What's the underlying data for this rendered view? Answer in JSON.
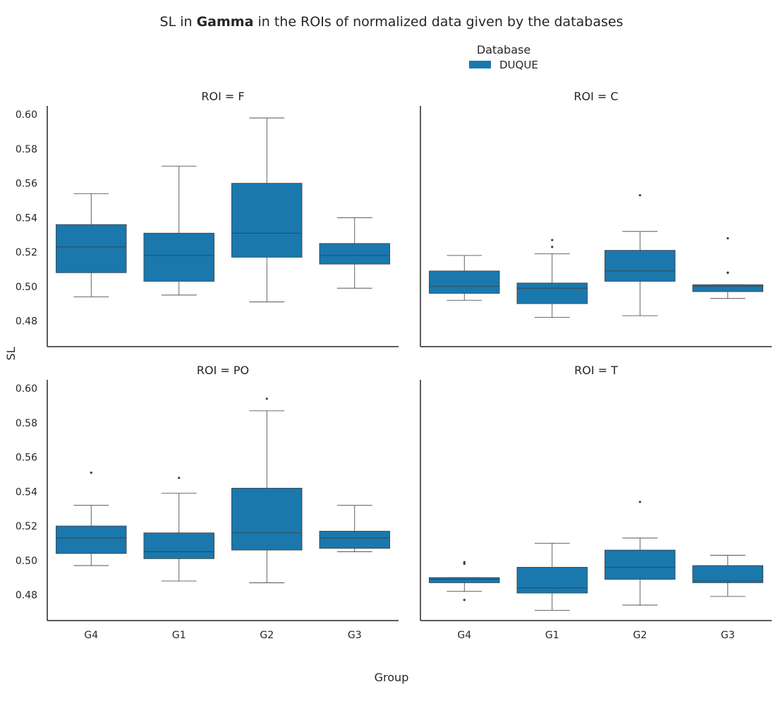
{
  "title": {
    "prefix": "SL in ",
    "bold": "Gamma",
    "suffix": " in the ROIs of normalized data given by the databases"
  },
  "legend": {
    "title": "Database",
    "entries": [
      {
        "label": "DUQUE",
        "color": "#1a78ad"
      }
    ]
  },
  "axis_labels": {
    "y": "SL",
    "x": "Group"
  },
  "colors": {
    "box": "#1a78ad",
    "line": "#3d3d3d",
    "axis": "#262626"
  },
  "chart_data": {
    "type": "box",
    "categories": [
      "G4",
      "G1",
      "G2",
      "G3"
    ],
    "ylim": [
      0.465,
      0.605
    ],
    "y_ticks": [
      0.48,
      0.5,
      0.52,
      0.54,
      0.56,
      0.58,
      0.6
    ],
    "y_tick_labels": [
      "0.48",
      "0.50",
      "0.52",
      "0.54",
      "0.56",
      "0.58",
      "0.60"
    ],
    "grid": false,
    "legend_position": "top-center",
    "panels": [
      {
        "title": "ROI = F",
        "boxes": [
          {
            "group": "G4",
            "whislo": 0.494,
            "q1": 0.508,
            "med": 0.523,
            "q3": 0.536,
            "whishi": 0.554,
            "fliers": []
          },
          {
            "group": "G1",
            "whislo": 0.495,
            "q1": 0.503,
            "med": 0.518,
            "q3": 0.531,
            "whishi": 0.57,
            "fliers": []
          },
          {
            "group": "G2",
            "whislo": 0.491,
            "q1": 0.517,
            "med": 0.531,
            "q3": 0.56,
            "whishi": 0.598,
            "fliers": []
          },
          {
            "group": "G3",
            "whislo": 0.499,
            "q1": 0.513,
            "med": 0.518,
            "q3": 0.525,
            "whishi": 0.54,
            "fliers": []
          }
        ]
      },
      {
        "title": "ROI = C",
        "boxes": [
          {
            "group": "G4",
            "whislo": 0.492,
            "q1": 0.496,
            "med": 0.5,
            "q3": 0.509,
            "whishi": 0.518,
            "fliers": []
          },
          {
            "group": "G1",
            "whislo": 0.482,
            "q1": 0.49,
            "med": 0.499,
            "q3": 0.502,
            "whishi": 0.519,
            "fliers": [
              0.523,
              0.527
            ]
          },
          {
            "group": "G2",
            "whislo": 0.483,
            "q1": 0.503,
            "med": 0.509,
            "q3": 0.521,
            "whishi": 0.532,
            "fliers": [
              0.553
            ]
          },
          {
            "group": "G3",
            "whislo": 0.493,
            "q1": 0.497,
            "med": 0.5,
            "q3": 0.501,
            "whishi": 0.501,
            "fliers": [
              0.508,
              0.508,
              0.528
            ]
          }
        ]
      },
      {
        "title": "ROI = PO",
        "boxes": [
          {
            "group": "G4",
            "whislo": 0.497,
            "q1": 0.504,
            "med": 0.513,
            "q3": 0.52,
            "whishi": 0.532,
            "fliers": [
              0.551
            ]
          },
          {
            "group": "G1",
            "whislo": 0.488,
            "q1": 0.501,
            "med": 0.505,
            "q3": 0.516,
            "whishi": 0.539,
            "fliers": [
              0.548
            ]
          },
          {
            "group": "G2",
            "whislo": 0.487,
            "q1": 0.506,
            "med": 0.516,
            "q3": 0.542,
            "whishi": 0.587,
            "fliers": [
              0.594
            ]
          },
          {
            "group": "G3",
            "whislo": 0.505,
            "q1": 0.507,
            "med": 0.513,
            "q3": 0.517,
            "whishi": 0.532,
            "fliers": []
          }
        ]
      },
      {
        "title": "ROI = T",
        "boxes": [
          {
            "group": "G4",
            "whislo": 0.482,
            "q1": 0.487,
            "med": 0.489,
            "q3": 0.49,
            "whishi": 0.49,
            "fliers": [
              0.477,
              0.498,
              0.499
            ]
          },
          {
            "group": "G1",
            "whislo": 0.471,
            "q1": 0.481,
            "med": 0.484,
            "q3": 0.496,
            "whishi": 0.51,
            "fliers": []
          },
          {
            "group": "G2",
            "whislo": 0.474,
            "q1": 0.489,
            "med": 0.496,
            "q3": 0.506,
            "whishi": 0.513,
            "fliers": [
              0.534
            ]
          },
          {
            "group": "G3",
            "whislo": 0.479,
            "q1": 0.487,
            "med": 0.488,
            "q3": 0.497,
            "whishi": 0.503,
            "fliers": []
          }
        ]
      }
    ]
  }
}
